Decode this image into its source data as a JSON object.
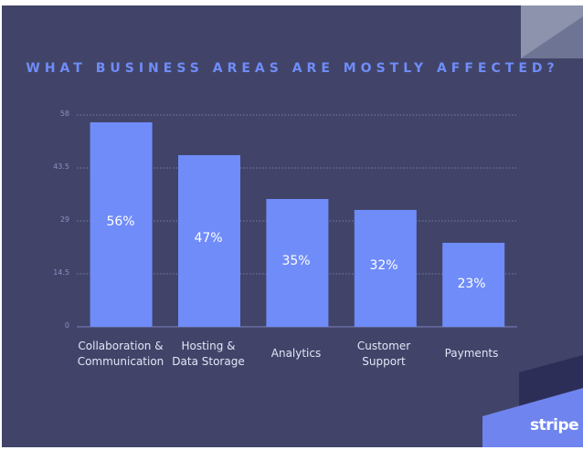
{
  "chart_data": {
    "type": "bar",
    "title": "WHAT BUSINESS AREAS ARE MOSTLY AFFECTED?",
    "categories": [
      "Collaboration &\nCommunication",
      "Hosting &\nData Storage",
      "Analytics",
      "Customer\nSupport",
      "Payments"
    ],
    "values": [
      56,
      47,
      35,
      32,
      23
    ],
    "value_labels": [
      "56%",
      "47%",
      "35%",
      "32%",
      "23%"
    ],
    "yticks": [
      "58",
      "43.5",
      "29",
      "14.5",
      "0"
    ],
    "ylim": [
      0,
      58
    ],
    "grid": "dotted horizontal",
    "xlabel": "",
    "ylabel": ""
  },
  "brand": {
    "logo_text": "stripe"
  },
  "colors": {
    "background": "#414468",
    "bar": "#6f8cf9",
    "title": "#6f8cf9",
    "accent_dark": "#2c2e57",
    "accent_light": "#6f84ee"
  }
}
